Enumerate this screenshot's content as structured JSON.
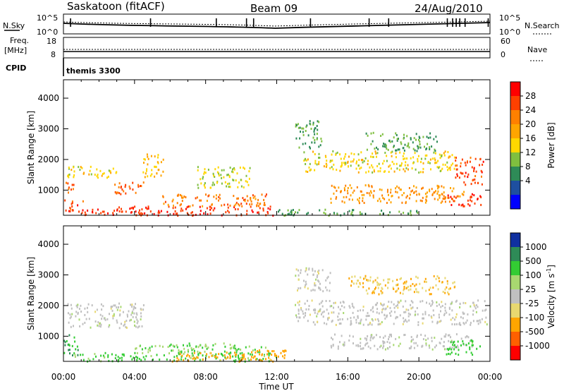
{
  "header": {
    "station": "Saskatoon (fitACF)",
    "beam": "Beam 09",
    "date": "24/Aug/2010"
  },
  "noise_panel": {
    "left_label": "N.Sky",
    "right_label": "N.Search",
    "left_ticks": [
      "10^5",
      "10^0"
    ],
    "right_ticks": [
      "10^5",
      "10^0"
    ],
    "noise_events": [
      0.4,
      4.9,
      8.6,
      10.3,
      10.7,
      13.9,
      17.2,
      18.3,
      21.6,
      21.9,
      22.1,
      22.3,
      22.6,
      23.9
    ]
  },
  "freq_panel": {
    "left_label_1": "Freq.",
    "left_label_2": "[MHz]",
    "right_label": "Nave",
    "left_ticks": [
      "18",
      "8"
    ],
    "right_ticks": [
      "60",
      "0"
    ]
  },
  "cpid": {
    "label": "CPID",
    "value": "themis 3300"
  },
  "x_axis": {
    "label": "Time UT",
    "ticks": [
      "00:00",
      "04:00",
      "08:00",
      "12:00",
      "16:00",
      "20:00",
      "00:00"
    ],
    "range_hours": [
      0,
      24
    ]
  },
  "power_colorbar": {
    "label": "Power [dB]",
    "ticks": [
      "28",
      "24",
      "20",
      "16",
      "12",
      "8",
      "4"
    ],
    "colors": [
      "#ff0000",
      "#ff4000",
      "#ff8000",
      "#ffa500",
      "#ffd700",
      "#7fbf3f",
      "#2e8b57",
      "#1e4fa0",
      "#0000ff"
    ]
  },
  "velocity_colorbar": {
    "label": "Velocity [m s",
    "label_exp": "-1",
    "label_end": "]",
    "ticks": [
      "1000",
      "500",
      "100",
      "25",
      "-25",
      "-100",
      "-500",
      "-1000"
    ],
    "colors": [
      "#1030a0",
      "#2e8b57",
      "#33cc33",
      "#a8d870",
      "#c0c0c0",
      "#e8d870",
      "#ffa500",
      "#ff6000",
      "#ff0000"
    ]
  },
  "chart_data": [
    {
      "type": "heatmap",
      "title": "",
      "xlabel": "Time UT",
      "ylabel": "Slant Range [km]",
      "xlim": [
        0,
        24
      ],
      "ylim": [
        180,
        4600
      ],
      "y_ticks": [
        1000,
        2000,
        3000,
        4000
      ],
      "colorbar": "Power [dB]",
      "clim": [
        0,
        30
      ],
      "regions": [
        {
          "t0": 0.0,
          "t1": 1.2,
          "r0": 300,
          "r1": 700,
          "v": 26
        },
        {
          "t0": 0.1,
          "t1": 0.6,
          "r0": 800,
          "r1": 1300,
          "v": 24
        },
        {
          "t0": 0.2,
          "t1": 3.0,
          "r0": 1400,
          "r1": 1800,
          "v": 14
        },
        {
          "t0": 1.0,
          "t1": 12.0,
          "r0": 200,
          "r1": 500,
          "v": 27
        },
        {
          "t0": 2.8,
          "t1": 4.6,
          "r0": 900,
          "r1": 1300,
          "v": 24
        },
        {
          "t0": 4.4,
          "t1": 5.6,
          "r0": 1400,
          "r1": 2200,
          "v": 16
        },
        {
          "t0": 5.5,
          "t1": 11.5,
          "r0": 500,
          "r1": 900,
          "v": 22
        },
        {
          "t0": 7.5,
          "t1": 10.5,
          "r0": 1100,
          "r1": 1800,
          "v": 12
        },
        {
          "t0": 12.0,
          "t1": 20.0,
          "r0": 200,
          "r1": 400,
          "v": 8
        },
        {
          "t0": 13.0,
          "t1": 14.5,
          "r0": 2400,
          "r1": 3300,
          "v": 8
        },
        {
          "t0": 13.5,
          "t1": 22.0,
          "r0": 1600,
          "r1": 2300,
          "v": 14
        },
        {
          "t0": 15.0,
          "t1": 22.5,
          "r0": 600,
          "r1": 1200,
          "v": 20
        },
        {
          "t0": 17.0,
          "t1": 21.0,
          "r0": 2300,
          "r1": 2900,
          "v": 8
        },
        {
          "t0": 21.5,
          "t1": 23.5,
          "r0": 500,
          "r1": 900,
          "v": 27
        },
        {
          "t0": 22.0,
          "t1": 23.6,
          "r0": 1200,
          "r1": 2100,
          "v": 26
        }
      ]
    },
    {
      "type": "heatmap",
      "title": "",
      "xlabel": "Time UT",
      "ylabel": "Slant Range [km]",
      "xlim": [
        0,
        24
      ],
      "ylim": [
        180,
        4600
      ],
      "y_ticks": [
        1000,
        2000,
        3000,
        4000
      ],
      "colorbar": "Velocity [m s-1]",
      "clim": [
        -1000,
        1000
      ],
      "regions": [
        {
          "t0": 0.0,
          "t1": 0.8,
          "r0": 400,
          "r1": 1100,
          "v": 300
        },
        {
          "t0": 0.2,
          "t1": 4.5,
          "r0": 1300,
          "r1": 2100,
          "v": 0
        },
        {
          "t0": 0.5,
          "t1": 12.0,
          "r0": 200,
          "r1": 500,
          "v": 80
        },
        {
          "t0": 4.0,
          "t1": 11.5,
          "r0": 500,
          "r1": 800,
          "v": 60
        },
        {
          "t0": 6.0,
          "t1": 11.8,
          "r0": 200,
          "r1": 500,
          "v": -80
        },
        {
          "t0": 10.5,
          "t1": 12.5,
          "r0": 200,
          "r1": 600,
          "v": -150
        },
        {
          "t0": 13.0,
          "t1": 15.0,
          "r0": 2500,
          "r1": 3300,
          "v": 0
        },
        {
          "t0": 13.0,
          "t1": 23.8,
          "r0": 1400,
          "r1": 2200,
          "v": 0
        },
        {
          "t0": 15.0,
          "t1": 23.0,
          "r0": 600,
          "r1": 1100,
          "v": 5
        },
        {
          "t0": 16.0,
          "t1": 22.0,
          "r0": 2400,
          "r1": 3000,
          "v": -60
        },
        {
          "t0": 21.5,
          "t1": 23.5,
          "r0": 400,
          "r1": 900,
          "v": 90
        }
      ]
    }
  ]
}
